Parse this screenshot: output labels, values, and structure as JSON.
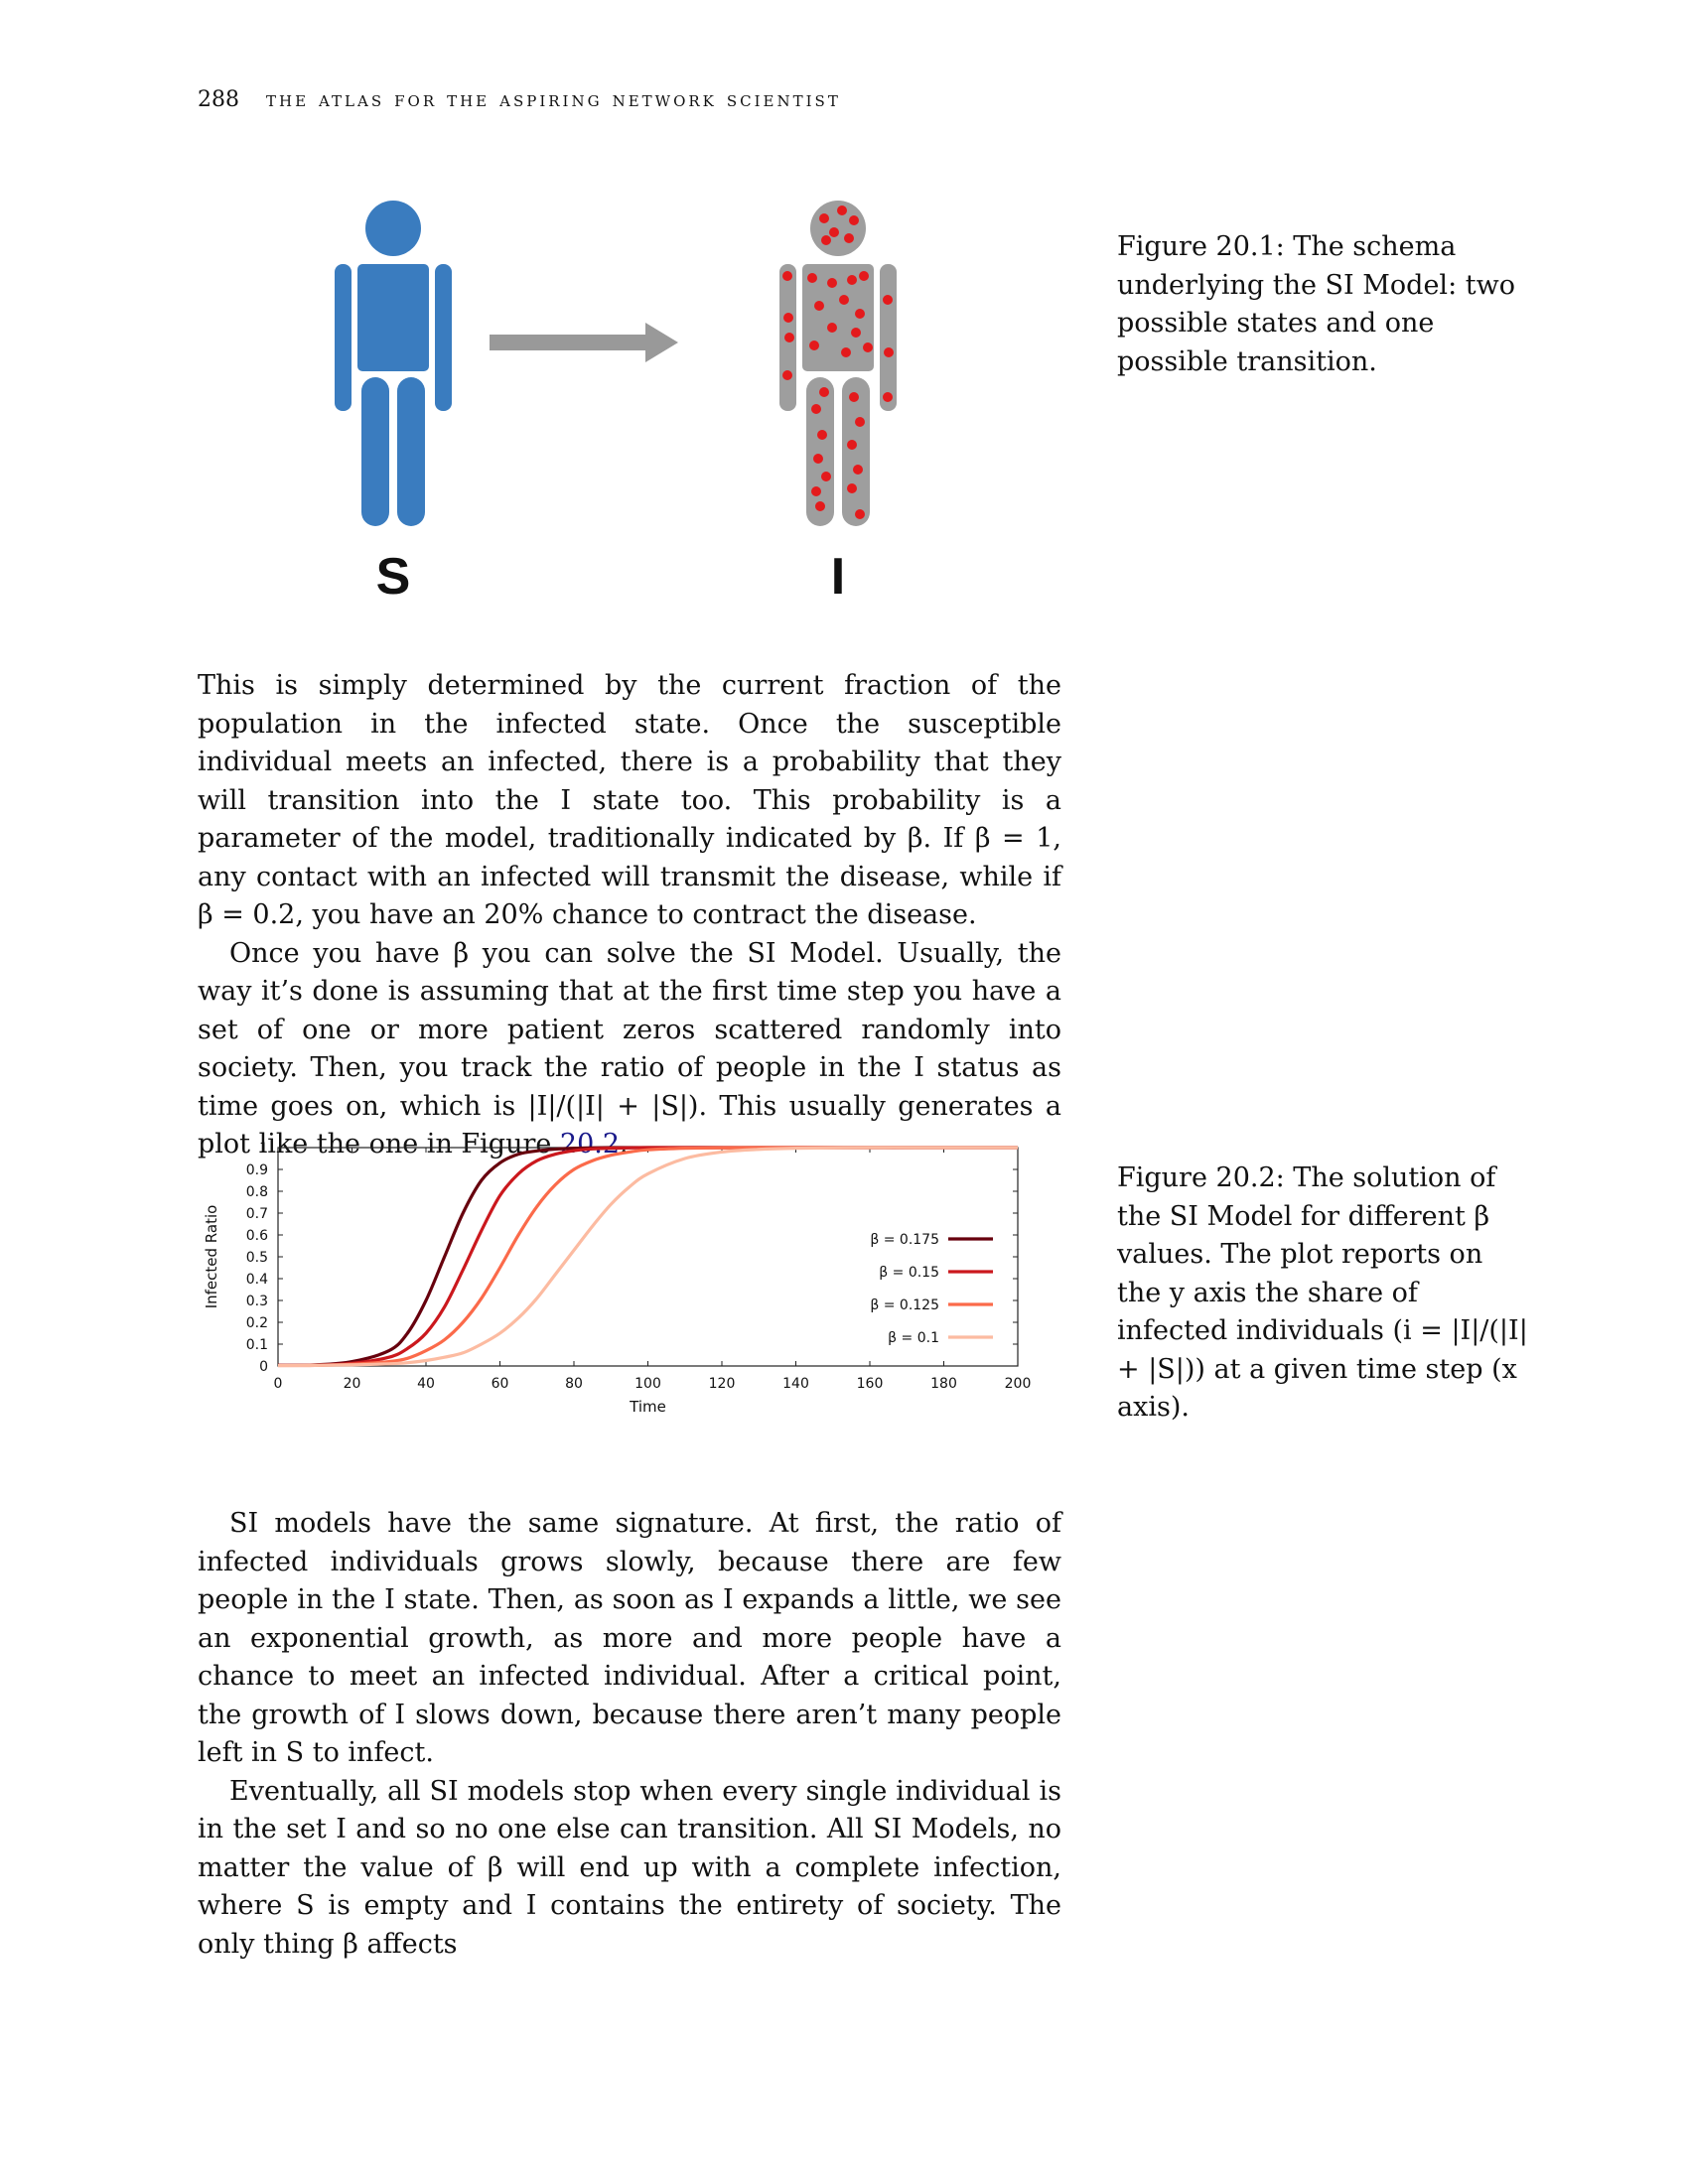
{
  "header": {
    "page_number": "288",
    "running_title": "the atlas for the aspiring network scientist"
  },
  "figure1": {
    "label_s": "S",
    "label_i": "I",
    "colors": {
      "susceptible": "#3a7cbf",
      "infected": "#9e9e9e",
      "dots": "#e41a1c",
      "arrow": "#999999"
    },
    "caption": "Figure 20.1: The schema underlying the SI Model: two possible states and one possible transition."
  },
  "body1": {
    "p1": "This is simply determined by the current fraction of the population in the infected state. Once the susceptible individual meets an infected, there is a probability that they will transition into the I state too. This probability is a parameter of the model, traditionally indicated by β. If β = 1, any contact with an infected will transmit the disease, while if β = 0.2, you have an 20% chance to contract the disease.",
    "p2_a": "Once you have β you can solve the SI Model. Usually, the way it’s done is assuming that at the first time step you have a set of one or more patient zeros scattered randomly into society. Then, you track the ratio of people in the I status as time goes on, which is |I|/(|I| + |S|). This usually generates a plot like the one in Figure ",
    "p2_ref": "20.2",
    "p2_end": "."
  },
  "chart_data": {
    "type": "line",
    "xlabel": "Time",
    "ylabel": "Infected Ratio",
    "xlim": [
      0,
      200
    ],
    "ylim": [
      0,
      1
    ],
    "x_ticks": [
      "0",
      "20",
      "40",
      "60",
      "80",
      "100",
      "120",
      "140",
      "160",
      "180",
      "200"
    ],
    "y_ticks": [
      "0",
      "0.1",
      "0.2",
      "0.3",
      "0.4",
      "0.5",
      "0.6",
      "0.7",
      "0.8",
      "0.9",
      "1"
    ],
    "legend_position": "center-right",
    "x": [
      0,
      10,
      20,
      30,
      35,
      40,
      45,
      50,
      55,
      60,
      65,
      70,
      75,
      80,
      85,
      90,
      95,
      100,
      110,
      120,
      130,
      140,
      160,
      180,
      200
    ],
    "series": [
      {
        "name": "β = 0.175",
        "color": "#67000d",
        "values": [
          0.003,
          0.005,
          0.02,
          0.07,
          0.15,
          0.3,
          0.5,
          0.7,
          0.85,
          0.93,
          0.97,
          0.985,
          0.993,
          0.997,
          0.999,
          1,
          1,
          1,
          1,
          1,
          1,
          1,
          1,
          1,
          1
        ]
      },
      {
        "name": "β = 0.15",
        "color": "#cb181d",
        "values": [
          0.003,
          0.004,
          0.012,
          0.04,
          0.08,
          0.15,
          0.27,
          0.44,
          0.62,
          0.78,
          0.88,
          0.94,
          0.97,
          0.986,
          0.994,
          0.997,
          0.999,
          1,
          1,
          1,
          1,
          1,
          1,
          1,
          1
        ]
      },
      {
        "name": "β = 0.125",
        "color": "#fb6a4a",
        "values": [
          0.002,
          0.003,
          0.008,
          0.02,
          0.035,
          0.07,
          0.12,
          0.2,
          0.31,
          0.45,
          0.6,
          0.73,
          0.83,
          0.9,
          0.94,
          0.965,
          0.98,
          0.99,
          0.997,
          0.999,
          1,
          1,
          1,
          1,
          1
        ]
      },
      {
        "name": "β = 0.1",
        "color": "#fcbba1",
        "values": [
          0.002,
          0.003,
          0.005,
          0.01,
          0.015,
          0.025,
          0.04,
          0.06,
          0.1,
          0.15,
          0.22,
          0.31,
          0.42,
          0.53,
          0.64,
          0.74,
          0.82,
          0.88,
          0.95,
          0.98,
          0.992,
          0.997,
          1,
          1,
          1
        ]
      }
    ]
  },
  "figure2": {
    "caption": "Figure 20.2: The solution of the SI Model for different β values. The plot reports on the y axis the share of infected individuals (i = |I|/(|I| + |S|)) at a given time step (x axis)."
  },
  "body2": {
    "p1": "SI models have the same signature. At first, the ratio of infected individuals grows slowly, because there are few people in the I state. Then, as soon as I expands a little, we see an exponential growth, as more and more people have a chance to meet an infected individual. After a critical point, the growth of I slows down, because there aren’t many people left in S to infect.",
    "p2": "Eventually, all SI models stop when every single individual is in the set I and so no one else can transition. All SI Models, no matter the value of β will end up with a complete infection, where S is empty and I contains the entirety of society. The only thing β affects"
  }
}
